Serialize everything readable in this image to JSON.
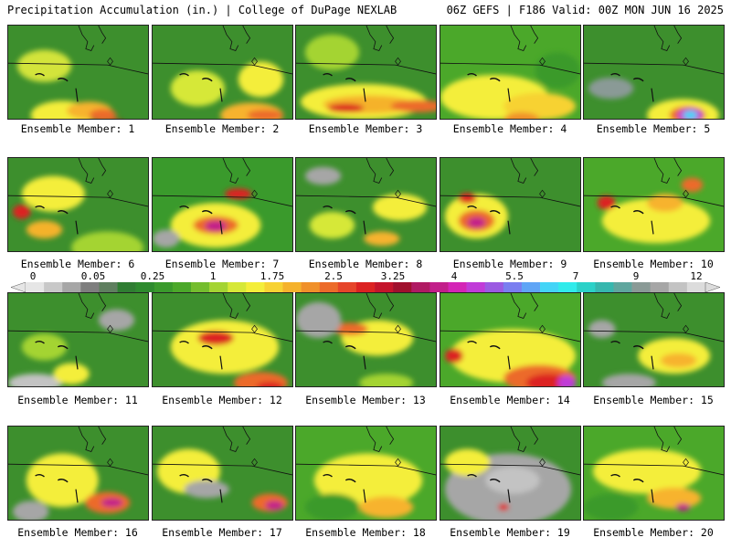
{
  "header": {
    "title": "Precipitation Accumulation (in.) | College of DuPage NEXLAB",
    "run_info": "06Z GEFS | F186 Valid: 00Z MON JUN 16 2025"
  },
  "colorbar": {
    "labels": [
      "0",
      "0.05",
      "0.25",
      "1",
      "1.75",
      "2.5",
      "3.25",
      "4",
      "5.5",
      "7",
      "9",
      "12"
    ],
    "colors": [
      "#e6e6e6",
      "#c8c8c8",
      "#a6a6a6",
      "#7e7e7e",
      "#5f7f5f",
      "#2f7d32",
      "#2e8b2e",
      "#3a9a2c",
      "#4ba82a",
      "#74bd2e",
      "#a4d433",
      "#d6e838",
      "#f4ee3a",
      "#f7d233",
      "#f5b22c",
      "#f0902a",
      "#ec6b2a",
      "#e6452a",
      "#dc2222",
      "#c4142b",
      "#a0102d",
      "#b01a63",
      "#c21f8a",
      "#d425b6",
      "#c03bd8",
      "#9b5ae2",
      "#7a7ef0",
      "#5fa5f6",
      "#43d4f7",
      "#30ebeb",
      "#2bd1c8",
      "#36b7ae",
      "#5fa69e",
      "#8a9a96",
      "#a6a6a6",
      "#c3c3c3",
      "#dcdcdc"
    ]
  },
  "members": [
    {
      "label": "Ensemble Member: 1",
      "base": "#3d8f2d",
      "blobs": [
        [
          "#d3e43a",
          40,
          45,
          30,
          18
        ],
        [
          "#f4ee3a",
          60,
          100,
          35,
          16
        ],
        [
          "#f7b32d",
          90,
          95,
          25,
          10
        ],
        [
          "#ec6b2a",
          105,
          100,
          15,
          7
        ],
        [
          "#dc2222",
          120,
          110,
          8,
          5
        ],
        [
          "#b01a63",
          140,
          118,
          10,
          6
        ],
        [
          "#c21f8a",
          145,
          120,
          6,
          4
        ]
      ]
    },
    {
      "label": "Ensemble Member: 2",
      "base": "#3d8f2d",
      "blobs": [
        [
          "#d6e838",
          50,
          70,
          30,
          20
        ],
        [
          "#f4ee3a",
          120,
          60,
          25,
          20
        ],
        [
          "#f7b32d",
          110,
          100,
          35,
          14
        ],
        [
          "#ec6b2a",
          125,
          100,
          20,
          6
        ]
      ]
    },
    {
      "label": "Ensemble Member: 3",
      "base": "#3d8f2d",
      "blobs": [
        [
          "#f4ee3a",
          75,
          85,
          70,
          20
        ],
        [
          "#f5b22c",
          80,
          88,
          50,
          10
        ],
        [
          "#dc2222",
          55,
          92,
          20,
          5
        ],
        [
          "#ec6b2a",
          135,
          90,
          30,
          7
        ],
        [
          "#a4d433",
          40,
          30,
          30,
          20
        ]
      ]
    },
    {
      "label": "Ensemble Member: 4",
      "base": "#4ba82a",
      "blobs": [
        [
          "#f4ee3a",
          60,
          80,
          60,
          25
        ],
        [
          "#f7d233",
          110,
          90,
          40,
          15
        ],
        [
          "#f0902a",
          90,
          105,
          20,
          8
        ],
        [
          "#3a9a2c",
          130,
          50,
          25,
          20
        ]
      ]
    },
    {
      "label": "Ensemble Member: 5",
      "base": "#3d8f2d",
      "blobs": [
        [
          "#f4ee3a",
          110,
          100,
          40,
          18
        ],
        [
          "#ec6b2a",
          115,
          100,
          20,
          10
        ],
        [
          "#c03bd8",
          118,
          100,
          14,
          8
        ],
        [
          "#43d4f7",
          118,
          100,
          8,
          5
        ],
        [
          "#8a9a96",
          30,
          70,
          25,
          12
        ]
      ]
    },
    {
      "label": "Ensemble Member: 6",
      "base": "#3d8f2d",
      "blobs": [
        [
          "#f4ee3a",
          50,
          40,
          35,
          20
        ],
        [
          "#a4d433",
          110,
          100,
          40,
          18
        ],
        [
          "#dc2222",
          15,
          60,
          10,
          8
        ],
        [
          "#f5b22c",
          40,
          80,
          20,
          10
        ]
      ]
    },
    {
      "label": "Ensemble Member: 7",
      "base": "#3a9a2c",
      "blobs": [
        [
          "#f4ee3a",
          70,
          75,
          50,
          25
        ],
        [
          "#ec6b2a",
          70,
          75,
          25,
          10
        ],
        [
          "#c21f8a",
          70,
          76,
          12,
          6
        ],
        [
          "#a6a6a6",
          15,
          90,
          15,
          10
        ],
        [
          "#dc2222",
          95,
          40,
          15,
          6
        ]
      ]
    },
    {
      "label": "Ensemble Member: 8",
      "base": "#3d8f2d",
      "blobs": [
        [
          "#d6e838",
          40,
          75,
          25,
          15
        ],
        [
          "#f4ee3a",
          115,
          55,
          30,
          15
        ],
        [
          "#f7b32d",
          95,
          90,
          20,
          8
        ],
        [
          "#a6a6a6",
          30,
          20,
          20,
          10
        ]
      ]
    },
    {
      "label": "Ensemble Member: 9",
      "base": "#3d8f2d",
      "blobs": [
        [
          "#f4ee3a",
          40,
          65,
          35,
          25
        ],
        [
          "#ec6b2a",
          40,
          70,
          20,
          12
        ],
        [
          "#c21f8a",
          40,
          72,
          10,
          6
        ],
        [
          "#dc2222",
          30,
          45,
          10,
          6
        ]
      ]
    },
    {
      "label": "Ensemble Member: 10",
      "base": "#4ba82a",
      "blobs": [
        [
          "#f4ee3a",
          80,
          70,
          60,
          25
        ],
        [
          "#f7b32d",
          90,
          50,
          20,
          10
        ],
        [
          "#dc2222",
          25,
          50,
          10,
          8
        ],
        [
          "#ec6b2a",
          120,
          30,
          12,
          8
        ]
      ]
    },
    {
      "label": "Ensemble Member: 11",
      "base": "#3d8f2d",
      "blobs": [
        [
          "#a6a6a6",
          120,
          30,
          20,
          12
        ],
        [
          "#c3c3c3",
          30,
          100,
          30,
          10
        ],
        [
          "#f4ee3a",
          70,
          90,
          20,
          12
        ],
        [
          "#a4d433",
          40,
          60,
          25,
          15
        ]
      ]
    },
    {
      "label": "Ensemble Member: 12",
      "base": "#3d8f2d",
      "blobs": [
        [
          "#f4ee3a",
          80,
          60,
          60,
          30
        ],
        [
          "#dc2222",
          70,
          50,
          20,
          8
        ],
        [
          "#ec6b2a",
          120,
          100,
          30,
          12
        ],
        [
          "#dc2222",
          130,
          105,
          15,
          6
        ]
      ]
    },
    {
      "label": "Ensemble Member: 13",
      "base": "#3d8f2d",
      "blobs": [
        [
          "#f4ee3a",
          90,
          50,
          40,
          20
        ],
        [
          "#ec6b2a",
          60,
          40,
          20,
          7
        ],
        [
          "#a6a6a6",
          25,
          30,
          25,
          20
        ],
        [
          "#a4d433",
          100,
          100,
          30,
          10
        ]
      ]
    },
    {
      "label": "Ensemble Member: 14",
      "base": "#4ba82a",
      "blobs": [
        [
          "#f4ee3a",
          80,
          70,
          70,
          30
        ],
        [
          "#ec6b2a",
          110,
          95,
          40,
          15
        ],
        [
          "#dc2222",
          120,
          100,
          25,
          10
        ],
        [
          "#c03bd8",
          140,
          100,
          10,
          8
        ],
        [
          "#dc2222",
          15,
          70,
          10,
          8
        ]
      ]
    },
    {
      "label": "Ensemble Member: 15",
      "base": "#3d8f2d",
      "blobs": [
        [
          "#f4ee3a",
          100,
          70,
          40,
          20
        ],
        [
          "#a6a6a6",
          20,
          40,
          15,
          10
        ],
        [
          "#a6a6a6",
          50,
          100,
          30,
          10
        ],
        [
          "#f7b32d",
          105,
          75,
          20,
          8
        ]
      ]
    },
    {
      "label": "Ensemble Member: 16",
      "base": "#3d8f2d",
      "blobs": [
        [
          "#f4ee3a",
          60,
          60,
          40,
          30
        ],
        [
          "#ec6b2a",
          110,
          85,
          25,
          12
        ],
        [
          "#c21f8a",
          115,
          85,
          12,
          5
        ],
        [
          "#a6a6a6",
          25,
          95,
          20,
          12
        ]
      ]
    },
    {
      "label": "Ensemble Member: 17",
      "base": "#3d8f2d",
      "blobs": [
        [
          "#f4ee3a",
          40,
          50,
          35,
          25
        ],
        [
          "#a6a6a6",
          60,
          70,
          25,
          10
        ],
        [
          "#ec6b2a",
          130,
          85,
          20,
          10
        ],
        [
          "#c21f8a",
          135,
          88,
          10,
          5
        ]
      ]
    },
    {
      "label": "Ensemble Member: 18",
      "base": "#4ba82a",
      "blobs": [
        [
          "#f4ee3a",
          80,
          60,
          60,
          30
        ],
        [
          "#f7b32d",
          100,
          90,
          30,
          12
        ],
        [
          "#3a9a2c",
          40,
          90,
          30,
          15
        ]
      ]
    },
    {
      "label": "Ensemble Member: 19",
      "base": "#3d8f2d",
      "blobs": [
        [
          "#a6a6a6",
          75,
          70,
          70,
          40
        ],
        [
          "#c3c3c3",
          80,
          60,
          30,
          15
        ],
        [
          "#f4ee3a",
          30,
          40,
          25,
          15
        ],
        [
          "#dc2222",
          70,
          90,
          6,
          4
        ]
      ]
    },
    {
      "label": "Ensemble Member: 20",
      "base": "#4ba82a",
      "blobs": [
        [
          "#f4ee3a",
          70,
          50,
          60,
          25
        ],
        [
          "#f7b32d",
          100,
          80,
          30,
          12
        ],
        [
          "#c21f8a",
          110,
          90,
          8,
          4
        ],
        [
          "#3a9a2c",
          30,
          90,
          30,
          15
        ]
      ]
    }
  ]
}
